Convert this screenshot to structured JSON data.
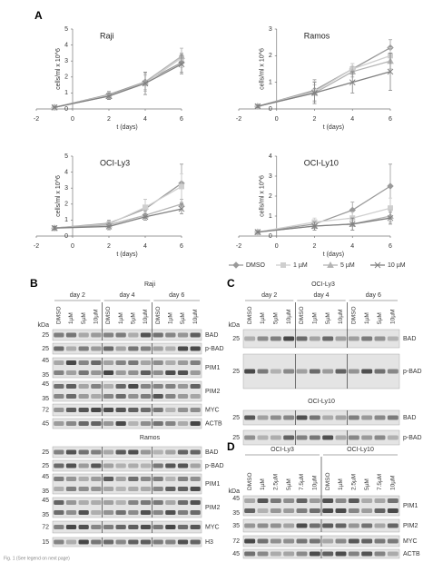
{
  "panel_labels": [
    "A",
    "B",
    "C",
    "D"
  ],
  "chart_data": [
    {
      "type": "line",
      "title": "Raji",
      "x_label": "t (days)",
      "y_label": "cells/ml x 10^6",
      "x": [
        -1,
        2,
        4,
        6
      ],
      "xlim": [
        -2,
        6
      ],
      "xticks": [
        -2,
        0,
        2,
        4,
        6
      ],
      "ylim": [
        0,
        5
      ],
      "yticks": [
        0,
        1,
        2,
        3,
        4,
        5
      ],
      "series": [
        {
          "name": "DMSO",
          "color": "#9a9a9a",
          "marker": "diamond",
          "values": [
            0.1,
            0.9,
            1.7,
            2.9
          ],
          "errors": [
            0.05,
            0.2,
            0.6,
            0.6
          ]
        },
        {
          "name": "1 µM",
          "color": "#cfcfcf",
          "marker": "square",
          "values": [
            0.1,
            0.85,
            1.6,
            3.2
          ],
          "errors": [
            0.05,
            0.2,
            0.5,
            0.6
          ]
        },
        {
          "name": "5 µM",
          "color": "#b4b4b4",
          "marker": "triangle",
          "values": [
            0.1,
            0.8,
            1.7,
            3.3
          ],
          "errors": [
            0.05,
            0.2,
            0.5,
            0.5
          ]
        },
        {
          "name": "10 µM",
          "color": "#808080",
          "marker": "cross",
          "values": [
            0.1,
            0.8,
            1.6,
            2.8
          ],
          "errors": [
            0.05,
            0.2,
            0.7,
            0.6
          ]
        }
      ]
    },
    {
      "type": "line",
      "title": "Ramos",
      "x_label": "t (days)",
      "y_label": "cells/ml x 10^6",
      "x": [
        -1,
        2,
        4,
        6
      ],
      "xlim": [
        -2,
        6
      ],
      "xticks": [
        -2,
        0,
        2,
        4,
        6
      ],
      "ylim": [
        0,
        3
      ],
      "yticks": [
        0,
        1,
        2,
        3
      ],
      "series": [
        {
          "color": "#9a9a9a",
          "marker": "diamond",
          "values": [
            0.1,
            0.7,
            1.5,
            2.3
          ],
          "errors": [
            0.05,
            0.4,
            0.2,
            0.3
          ]
        },
        {
          "color": "#cfcfcf",
          "marker": "square",
          "values": [
            0.1,
            0.65,
            1.5,
            2.0
          ],
          "errors": [
            0.05,
            0.4,
            0.2,
            0.3
          ]
        },
        {
          "color": "#b4b4b4",
          "marker": "triangle",
          "values": [
            0.1,
            0.6,
            1.4,
            1.8
          ],
          "errors": [
            0.05,
            0.3,
            0.2,
            0.3
          ]
        },
        {
          "color": "#808080",
          "marker": "cross",
          "values": [
            0.1,
            0.6,
            1.0,
            1.4
          ],
          "errors": [
            0.05,
            0.4,
            0.4,
            0.7
          ]
        }
      ]
    },
    {
      "type": "line",
      "title": "OCI-Ly3",
      "x_label": "t (days)",
      "y_label": "cells/ml x 10^6",
      "x": [
        -1,
        2,
        4,
        6
      ],
      "xlim": [
        -2,
        6
      ],
      "xticks": [
        -2,
        0,
        2,
        4,
        6
      ],
      "ylim": [
        0,
        5
      ],
      "yticks": [
        0,
        1,
        2,
        3,
        4,
        5
      ],
      "series": [
        {
          "color": "#9a9a9a",
          "marker": "diamond",
          "values": [
            0.5,
            0.8,
            1.7,
            3.3
          ],
          "errors": [
            0.1,
            0.2,
            0.6,
            1.2
          ]
        },
        {
          "color": "#cfcfcf",
          "marker": "square",
          "values": [
            0.5,
            0.75,
            1.8,
            3.1
          ],
          "errors": [
            0.1,
            0.2,
            0.5,
            0.8
          ]
        },
        {
          "color": "#b4b4b4",
          "marker": "triangle",
          "values": [
            0.5,
            0.7,
            1.3,
            2.0
          ],
          "errors": [
            0.1,
            0.2,
            0.2,
            0.3
          ]
        },
        {
          "color": "#808080",
          "marker": "cross",
          "values": [
            0.5,
            0.6,
            1.2,
            1.7
          ],
          "errors": [
            0.1,
            0.2,
            0.2,
            0.3
          ]
        }
      ]
    },
    {
      "type": "line",
      "title": "OCI-Ly10",
      "x_label": "t (days)",
      "y_label": "cells/ml x 10^6",
      "x": [
        -1,
        2,
        4,
        6
      ],
      "xlim": [
        -2,
        6
      ],
      "xticks": [
        -2,
        0,
        2,
        4,
        6
      ],
      "ylim": [
        0,
        4
      ],
      "yticks": [
        0,
        1,
        2,
        3,
        4
      ],
      "series": [
        {
          "color": "#9a9a9a",
          "marker": "diamond",
          "values": [
            0.2,
            0.6,
            1.3,
            2.5
          ],
          "errors": [
            0.05,
            0.2,
            0.4,
            1.1
          ]
        },
        {
          "color": "#cfcfcf",
          "marker": "square",
          "values": [
            0.2,
            0.7,
            0.9,
            1.4
          ],
          "errors": [
            0.05,
            0.2,
            0.3,
            0.5
          ]
        },
        {
          "color": "#b4b4b4",
          "marker": "triangle",
          "values": [
            0.2,
            0.5,
            0.6,
            1.0
          ],
          "errors": [
            0.05,
            0.2,
            0.3,
            0.3
          ]
        },
        {
          "color": "#808080",
          "marker": "cross",
          "values": [
            0.2,
            0.5,
            0.6,
            0.9
          ],
          "errors": [
            0.05,
            0.2,
            0.3,
            0.3
          ]
        }
      ]
    }
  ],
  "blots": [
    {
      "title": "Raji",
      "kda_header": "kDa",
      "groups": [
        "day 2",
        "day 4",
        "day 6"
      ],
      "lanes": [
        "DMSO",
        "1µM",
        "5µM",
        "10µM"
      ],
      "rows": [
        {
          "kda": [
            "25"
          ],
          "label": "BAD"
        },
        {
          "kda": [
            "25"
          ],
          "label": "p-BAD"
        },
        {
          "kda": [
            "45",
            "35"
          ],
          "label": "PIM1"
        },
        {
          "kda": [
            "45",
            "35"
          ],
          "label": "PIM2"
        },
        {
          "kda": [
            "72"
          ],
          "label": "MYC"
        },
        {
          "kda": [
            "45"
          ],
          "label": "ACTB"
        }
      ]
    },
    {
      "title": "Ramos",
      "rows": [
        {
          "kda": [
            "25"
          ],
          "label": "BAD"
        },
        {
          "kda": [
            "25"
          ],
          "label": "p-BAD"
        },
        {
          "kda": [
            "45",
            "35"
          ],
          "label": "PIM1"
        },
        {
          "kda": [
            "45",
            "35"
          ],
          "label": "PIM2"
        },
        {
          "kda": [
            "72"
          ],
          "label": "MYC"
        },
        {
          "kda": [
            "15"
          ],
          "label": "H3"
        }
      ]
    },
    {
      "title": "OCI-Ly3",
      "kda_header": "kDa",
      "groups": [
        "day 2",
        "day 4",
        "day 6"
      ],
      "lanes": [
        "DMSO",
        "1µM",
        "5µM",
        "10µM"
      ],
      "rows": [
        {
          "kda": [
            "25"
          ],
          "label": "BAD"
        },
        {
          "kda": [
            "25"
          ],
          "label": "p-BAD"
        }
      ]
    },
    {
      "title": "OCI-Ly10",
      "rows": [
        {
          "kda": [
            "25"
          ],
          "label": "BAD"
        },
        {
          "kda": [
            "25"
          ],
          "label": "p-BAD"
        }
      ]
    },
    {
      "kda_header": "kDa",
      "groups": [
        "OCI-Ly3",
        "OCI-Ly10"
      ],
      "lanes": [
        "DMSO",
        "1µM",
        "2.5µM",
        "5µM",
        "7.5µM",
        "10µM"
      ],
      "rows": [
        {
          "kda": [
            "45",
            "35"
          ],
          "label": "PIM1"
        },
        {
          "kda": [
            "35"
          ],
          "label": "PIM2"
        },
        {
          "kda": [
            "72"
          ],
          "label": "MYC"
        },
        {
          "kda": [
            "45"
          ],
          "label": "ACTB"
        }
      ]
    }
  ],
  "caption": "Fig. 1 (See legend on next page)"
}
